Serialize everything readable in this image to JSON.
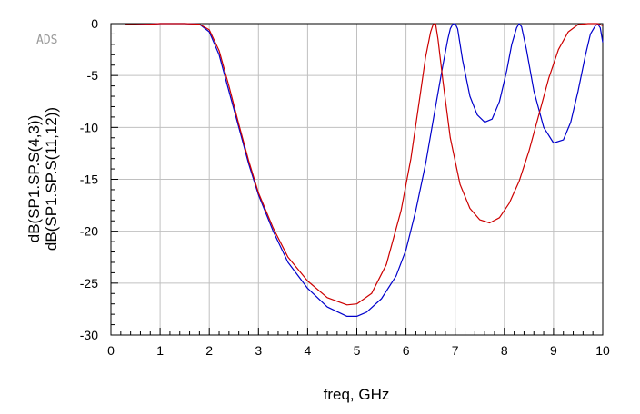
{
  "app": {
    "watermark": "ADS"
  },
  "chart_data": {
    "type": "line",
    "xlabel": "freq, GHz",
    "ylabel": "",
    "xlim": [
      0,
      10
    ],
    "ylim": [
      -30,
      0
    ],
    "xticks": [
      "0",
      "1",
      "2",
      "3",
      "4",
      "5",
      "6",
      "7",
      "8",
      "9",
      "10"
    ],
    "yticks": [
      "0",
      "-5",
      "-10",
      "-15",
      "-20",
      "-25",
      "-30"
    ],
    "grid": true,
    "legend": "left-vertical",
    "series": [
      {
        "name": "dB(SP1.SP.S(4,3))",
        "color": "#0000cc",
        "x": [
          0.3,
          0.5,
          0.8,
          1.0,
          1.5,
          1.8,
          2.0,
          2.2,
          2.4,
          2.6,
          2.8,
          3.0,
          3.3,
          3.6,
          4.0,
          4.4,
          4.8,
          5.0,
          5.2,
          5.5,
          5.8,
          6.0,
          6.2,
          6.4,
          6.6,
          6.75,
          6.85,
          6.9,
          6.95,
          7.0,
          7.05,
          7.15,
          7.3,
          7.45,
          7.6,
          7.75,
          7.9,
          8.05,
          8.15,
          8.25,
          8.3,
          8.35,
          8.45,
          8.6,
          8.8,
          9.0,
          9.2,
          9.35,
          9.5,
          9.65,
          9.75,
          9.85,
          9.9,
          9.95,
          10.0
        ],
        "y": [
          -0.1,
          -0.1,
          -0.05,
          0,
          0,
          -0.05,
          -0.8,
          -3,
          -6.5,
          -10,
          -13.5,
          -16.5,
          -20,
          -23,
          -25.5,
          -27.3,
          -28.2,
          -28.2,
          -27.8,
          -26.5,
          -24.3,
          -21.8,
          -18,
          -13.5,
          -8,
          -4,
          -1.5,
          -0.5,
          -0.05,
          0,
          -0.5,
          -3.5,
          -7,
          -8.8,
          -9.5,
          -9.2,
          -7.5,
          -4.5,
          -2,
          -0.4,
          0,
          -0.3,
          -2.5,
          -6.5,
          -10,
          -11.5,
          -11.2,
          -9.5,
          -6.5,
          -3,
          -1,
          -0.2,
          -0.05,
          -0.4,
          -1.8
        ]
      },
      {
        "name": "dB(SP1.SP.S(11,12))",
        "color": "#cc0000",
        "x": [
          0.3,
          0.5,
          0.8,
          1.0,
          1.5,
          1.8,
          2.0,
          2.2,
          2.4,
          2.6,
          2.8,
          3.0,
          3.3,
          3.6,
          4.0,
          4.4,
          4.8,
          5.0,
          5.3,
          5.6,
          5.9,
          6.1,
          6.3,
          6.4,
          6.5,
          6.55,
          6.6,
          6.65,
          6.75,
          6.9,
          7.1,
          7.3,
          7.5,
          7.7,
          7.9,
          8.1,
          8.3,
          8.5,
          8.7,
          8.9,
          9.1,
          9.3,
          9.5,
          9.7,
          9.8,
          9.9,
          10.0
        ],
        "y": [
          -0.1,
          -0.1,
          -0.05,
          0,
          0,
          -0.05,
          -0.6,
          -2.6,
          -6,
          -9.7,
          -13.2,
          -16.3,
          -19.7,
          -22.5,
          -24.8,
          -26.4,
          -27.1,
          -27,
          -26,
          -23.2,
          -18,
          -13,
          -6.5,
          -3.2,
          -0.8,
          -0.1,
          0,
          -1.5,
          -5.5,
          -11,
          -15.5,
          -17.8,
          -18.9,
          -19.2,
          -18.7,
          -17.3,
          -15.2,
          -12.3,
          -8.8,
          -5.3,
          -2.5,
          -0.8,
          -0.1,
          0,
          0,
          0,
          -0.2
        ]
      }
    ]
  }
}
